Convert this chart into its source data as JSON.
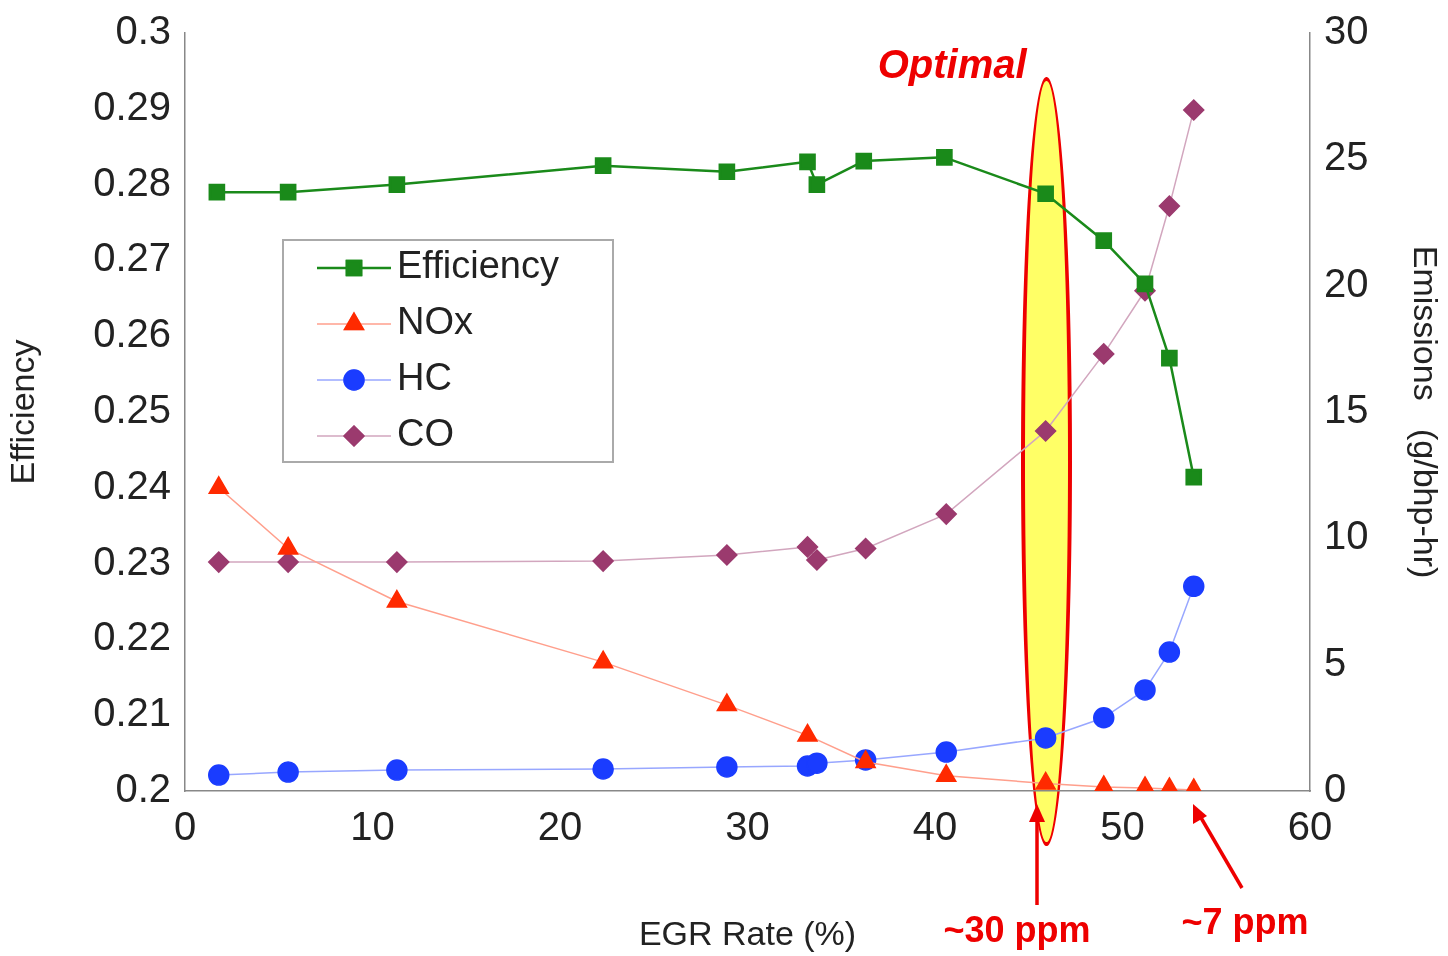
{
  "chart_data": {
    "type": "line",
    "xlabel": "EGR Rate (%)",
    "ylabel": "Efficiency",
    "y2label": "Emissions   (g/bhp-hr)",
    "xlim": [
      0,
      60
    ],
    "xticks": [
      0,
      10,
      20,
      30,
      40,
      50,
      60
    ],
    "ylim": [
      0.2,
      0.3
    ],
    "yticks": [
      0.2,
      0.21,
      0.22,
      0.23,
      0.24,
      0.25,
      0.26,
      0.27,
      0.28,
      0.29,
      0.3
    ],
    "y2lim": [
      0,
      30
    ],
    "y2ticks": [
      0,
      5,
      10,
      15,
      20,
      25,
      30
    ],
    "grid": false,
    "legend": "left",
    "line_style": "solid",
    "series": [
      {
        "name": "Efficiency",
        "color": "#1a8a1a",
        "marker": "square",
        "x": [
          1.7,
          5.5,
          11.3,
          22.3,
          28.9,
          33.2,
          33.7,
          36.2,
          40.5,
          45.9,
          49.0,
          51.2,
          52.5,
          53.8
        ],
        "values": [
          0.279,
          0.279,
          0.28,
          0.2825,
          0.2817,
          0.283,
          0.28,
          0.2831,
          0.2836,
          0.2788,
          0.2726,
          0.2669,
          0.2571,
          0.2414
        ]
      },
      {
        "name": "NOx",
        "color": "#ff2a00",
        "marker": "triangle",
        "axis": "y2",
        "x": [
          1.8,
          5.5,
          11.3,
          22.3,
          28.9,
          33.2,
          36.3,
          40.6,
          45.9,
          49.0,
          51.2,
          52.5,
          53.8
        ],
        "values": [
          12.0,
          9.6,
          7.5,
          5.1,
          3.4,
          2.2,
          1.15,
          0.6,
          0.3,
          0.16,
          0.12,
          0.08,
          0.04
        ]
      },
      {
        "name": "HC",
        "color": "#1a3cff",
        "marker": "circle",
        "axis": "y2",
        "x": [
          1.8,
          5.5,
          11.3,
          22.3,
          28.9,
          33.2,
          33.7,
          36.3,
          40.6,
          45.9,
          49.0,
          51.2,
          52.5,
          53.8
        ],
        "values": [
          0.63,
          0.75,
          0.83,
          0.87,
          0.95,
          0.99,
          1.1,
          1.23,
          1.54,
          2.1,
          2.9,
          4.0,
          5.5,
          8.1
        ]
      },
      {
        "name": "CO",
        "color": "#9b3a6e",
        "marker": "diamond",
        "axis": "y2",
        "x": [
          1.8,
          5.5,
          11.3,
          22.3,
          28.9,
          33.2,
          33.7,
          36.3,
          40.6,
          45.9,
          49.0,
          51.2,
          52.5,
          53.8
        ],
        "values": [
          9.06,
          9.06,
          9.06,
          9.1,
          9.34,
          9.66,
          9.14,
          9.6,
          10.96,
          14.25,
          17.3,
          19.8,
          23.15,
          26.95
        ]
      }
    ],
    "bands": [
      {
        "axis": "x",
        "from": 44.6,
        "to": 47.3,
        "label": "Optimal",
        "color": "#ffff66"
      }
    ],
    "annotations": [
      "~30 ppm",
      "~7 ppm"
    ]
  }
}
